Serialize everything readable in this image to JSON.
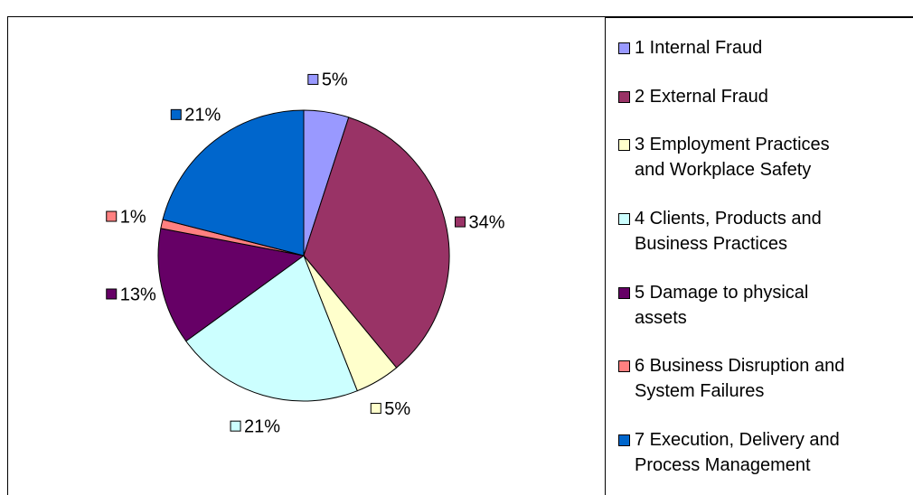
{
  "chart_data": {
    "type": "pie",
    "categories": [
      "1 Internal Fraud",
      "2 External Fraud",
      "3 Employment Practices\nand Workplace Safety",
      "4 Clients, Products and\nBusiness Practices",
      "5 Damage to physical\nassets",
      "6 Business Disruption and\nSystem Failures",
      "7 Execution, Delivery and\nProcess Management"
    ],
    "values": [
      5,
      34,
      5,
      21,
      13,
      1,
      21
    ],
    "value_labels": [
      "5%",
      "34%",
      "5%",
      "21%",
      "13%",
      "1%",
      "21%"
    ],
    "colors": [
      "#9999ff",
      "#993366",
      "#ffffcc",
      "#ccffff",
      "#660066",
      "#ff8080",
      "#0066cc"
    ],
    "legend": "right"
  }
}
